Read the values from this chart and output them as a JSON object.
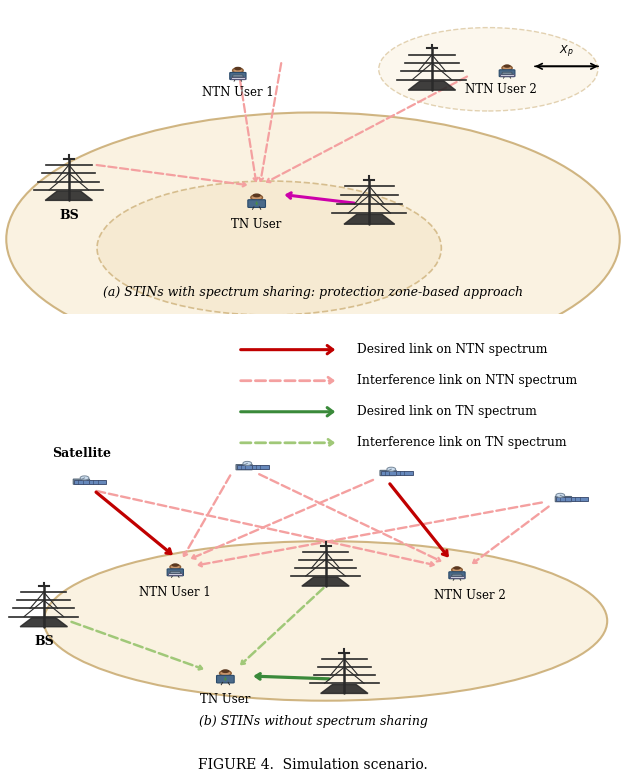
{
  "fig_width": 6.26,
  "fig_height": 7.84,
  "dpi": 100,
  "bg_color": "#ffffff",
  "ellipse_fc": "#faf0dc",
  "ellipse_ec": "#c8a96e",
  "protection_fc": "#f5e8cc",
  "protection_ec": "#c8a96e",
  "title_a": "(a) STINs with spectrum sharing: protection zone-based approach",
  "title_b": "(b) STINs without spectrum sharing",
  "figure_title": "FIGURE 4.  Simulation scenario.",
  "legend": [
    {
      "label": "Desired link on NTN spectrum",
      "color": "#c00000",
      "style": "solid"
    },
    {
      "label": "Interference link on NTN spectrum",
      "color": "#f4a0a0",
      "style": "dashed"
    },
    {
      "label": "Desired link on TN spectrum",
      "color": "#3a8a3a",
      "style": "solid"
    },
    {
      "label": "Interference link on TN spectrum",
      "color": "#a0c878",
      "style": "dashed"
    }
  ],
  "tower_color": "#2a2a2a",
  "magenta_arrow": "#cc00aa"
}
